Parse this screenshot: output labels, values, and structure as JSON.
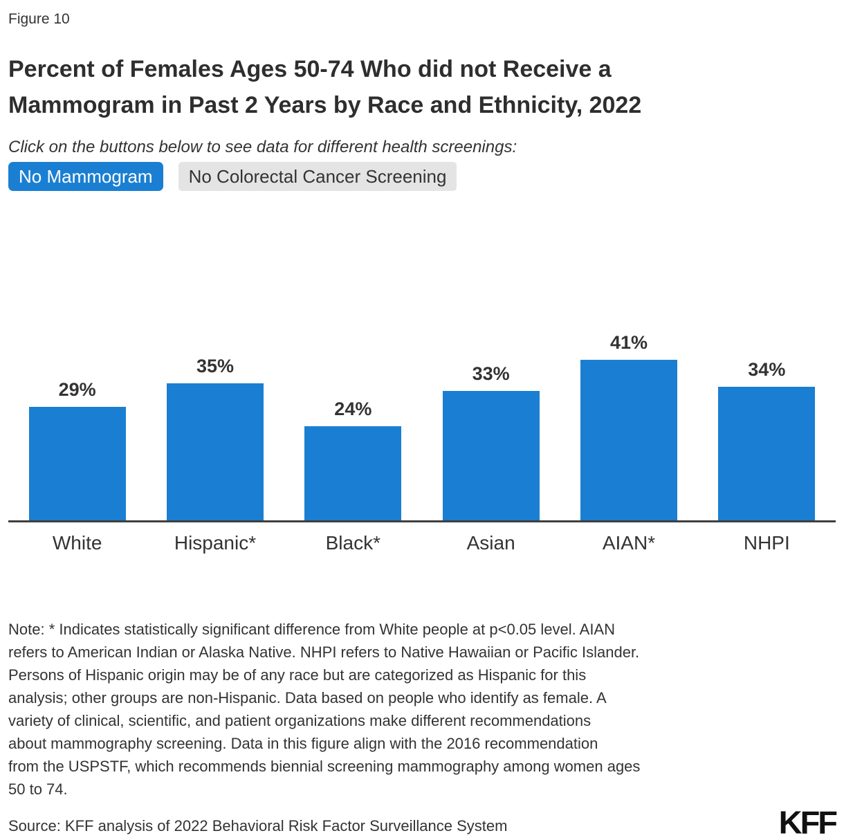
{
  "figure_label": "Figure 10",
  "title_lines": [
    "Percent of Females Ages 50-74 Who did not Receive a",
    "Mammogram in Past 2 Years by Race and Ethnicity, 2022"
  ],
  "subtitle": "Click on the buttons below to see data for different health screenings:",
  "buttons": [
    {
      "label": "No Mammogram",
      "active": true
    },
    {
      "label": "No Colorectal Cancer Screening",
      "active": false
    }
  ],
  "colors": {
    "accent_blue": "#1a7fd2",
    "inactive_button_bg": "#e4e4e4",
    "text": "#333333",
    "axis": "#3f3f3f",
    "logo": "#111111"
  },
  "chart_data": {
    "type": "bar",
    "title": "Percent of Females Ages 50-74 Who did not Receive a Mammogram in Past 2 Years by Race and Ethnicity, 2022",
    "categories": [
      "White",
      "Hispanic*",
      "Black*",
      "Asian",
      "AIAN*",
      "NHPI"
    ],
    "values": [
      29,
      35,
      24,
      33,
      41,
      34
    ],
    "value_labels": [
      "29%",
      "35%",
      "24%",
      "33%",
      "41%",
      "34%"
    ],
    "xlabel": "",
    "ylabel": "",
    "ylim": [
      0,
      55
    ],
    "grid": false,
    "legend": false,
    "bar_color": "#1a7fd2"
  },
  "note_lines": [
    "Note: * Indicates statistically significant difference from White people at p<0.05 level. AIAN",
    "refers to American Indian or Alaska Native. NHPI refers to Native Hawaiian or Pacific Islander.",
    "Persons of Hispanic origin may be of any race but are categorized as Hispanic for this",
    "analysis; other groups are non-Hispanic. Data based on people who identify as female. A",
    "variety of clinical, scientific, and patient organizations make different recommendations",
    "about mammography screening. Data in this figure align with the 2016 recommendation",
    "from the USPSTF, which recommends biennial screening mammography among women ages",
    "50 to 74."
  ],
  "source": "Source: KFF analysis of 2022 Behavioral Risk Factor Surveillance System",
  "logo": "KFF"
}
